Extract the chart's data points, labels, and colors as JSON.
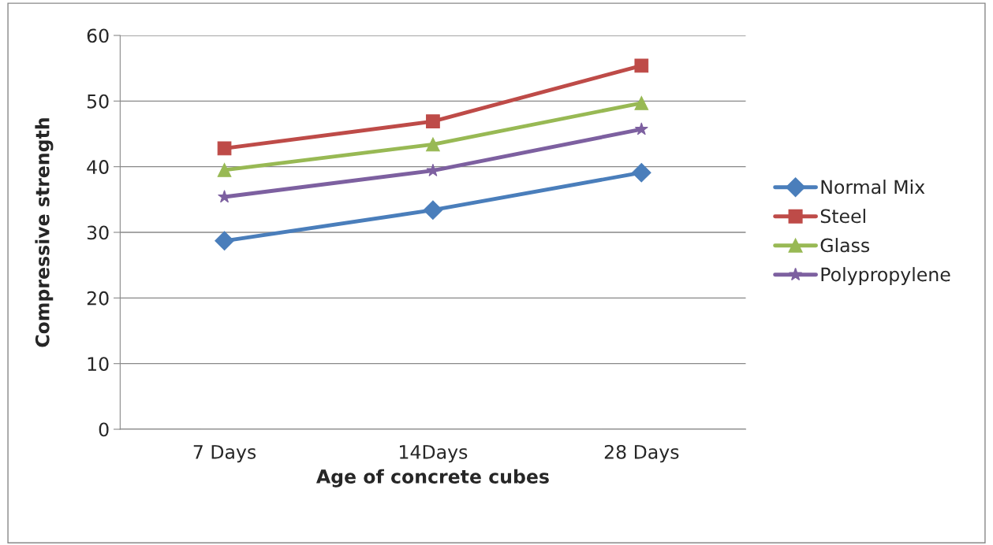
{
  "chart_data": {
    "type": "line",
    "xlabel": "Age of concrete cubes",
    "ylabel": "Compressive strength",
    "categories": [
      "7 Days",
      "14Days",
      "28 Days"
    ],
    "series": [
      {
        "name": "Normal Mix",
        "color": "#4a7ebb",
        "marker": "diamond",
        "values": [
          28.7,
          33.4,
          39.1
        ]
      },
      {
        "name": "Steel",
        "color": "#be4b48",
        "marker": "square",
        "values": [
          42.8,
          46.9,
          55.4
        ]
      },
      {
        "name": "Glass",
        "color": "#98b954",
        "marker": "triangle",
        "values": [
          39.5,
          43.4,
          49.7
        ]
      },
      {
        "name": "Polypropylene",
        "color": "#7d60a0",
        "marker": "star",
        "values": [
          35.4,
          39.4,
          45.7
        ]
      }
    ],
    "ylim": [
      0,
      60
    ],
    "yticks": [
      0,
      10,
      20,
      30,
      40,
      50,
      60
    ],
    "grid": "y",
    "legend": "right"
  }
}
